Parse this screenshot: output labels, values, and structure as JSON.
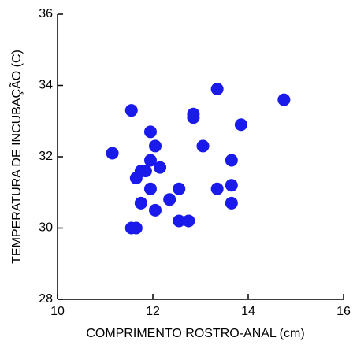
{
  "chart_data": {
    "type": "scatter",
    "x_label": "COMPRIMENTO ROSTRO-ANAL (cm)",
    "y_label": "TEMPERATURA DE INCUBAÇÃO (C)",
    "color": "#1a1aeb",
    "x": [
      11.15,
      11.55,
      11.95,
      12.05,
      11.95,
      12.15,
      11.85,
      11.75,
      11.65,
      11.95,
      11.75,
      12.05,
      11.55,
      11.65,
      12.35,
      12.55,
      12.55,
      12.75,
      12.85,
      12.85,
      13.05,
      13.35,
      13.35,
      13.65,
      13.65,
      13.65,
      13.85,
      14.75
    ],
    "y": [
      32.1,
      33.3,
      32.7,
      32.3,
      31.9,
      31.7,
      31.6,
      31.6,
      31.4,
      31.1,
      30.7,
      30.5,
      30.0,
      30.0,
      30.8,
      31.1,
      30.2,
      30.2,
      33.2,
      33.1,
      32.3,
      33.9,
      31.1,
      31.2,
      31.9,
      30.7,
      32.9,
      33.6
    ],
    "xlim": [
      10,
      16
    ],
    "xticks": [
      10,
      12,
      14,
      16
    ],
    "ylim": [
      28,
      36
    ],
    "yticks": [
      28,
      30,
      32,
      34,
      36
    ]
  }
}
